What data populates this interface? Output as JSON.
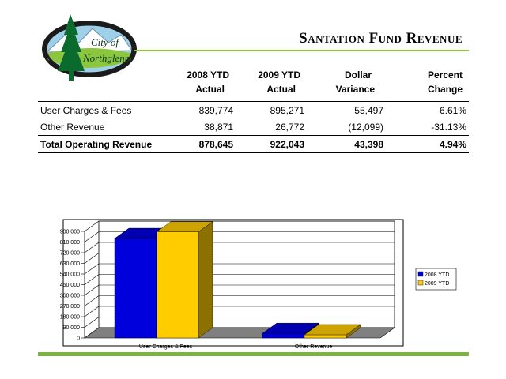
{
  "logo": {
    "text_line1": "City of",
    "text_line2": "Northglenn"
  },
  "title": "Santation Fund Revenue",
  "table": {
    "columns": [
      {
        "line1": "",
        "line2": ""
      },
      {
        "line1": "2008 YTD",
        "line2": "Actual"
      },
      {
        "line1": "2009 YTD",
        "line2": "Actual"
      },
      {
        "line1": "Dollar",
        "line2": "Variance"
      },
      {
        "line1": "Percent",
        "line2": "Change"
      }
    ],
    "rows": [
      {
        "label": "User Charges & Fees",
        "y2008": "839,774",
        "y2009": "895,271",
        "variance": "55,497",
        "pct": "6.61%"
      },
      {
        "label": "Other Revenue",
        "y2008": "38,871",
        "y2009": "26,772",
        "variance": "(12,099)",
        "pct": "-31.13%"
      }
    ],
    "total": {
      "label": "Total Operating Revenue",
      "y2008": "878,645",
      "y2009": "922,043",
      "variance": "43,398",
      "pct": "4.94%"
    }
  },
  "chart_data": {
    "type": "bar",
    "categories": [
      "User Charges & Fees",
      "Other Revenue"
    ],
    "series": [
      {
        "name": "2008 YTD",
        "values": [
          839774,
          38871
        ],
        "color": "#0000dd"
      },
      {
        "name": "2009 YTD",
        "values": [
          895271,
          26772
        ],
        "color": "#ffcc00"
      }
    ],
    "ylim": [
      0,
      900000
    ],
    "yticks": [
      "0",
      "90,000",
      "180,000",
      "270,000",
      "360,000",
      "450,000",
      "540,000",
      "630,000",
      "720,000",
      "810,000",
      "900,000"
    ],
    "grid": true,
    "legend": "right",
    "three_d": true
  }
}
